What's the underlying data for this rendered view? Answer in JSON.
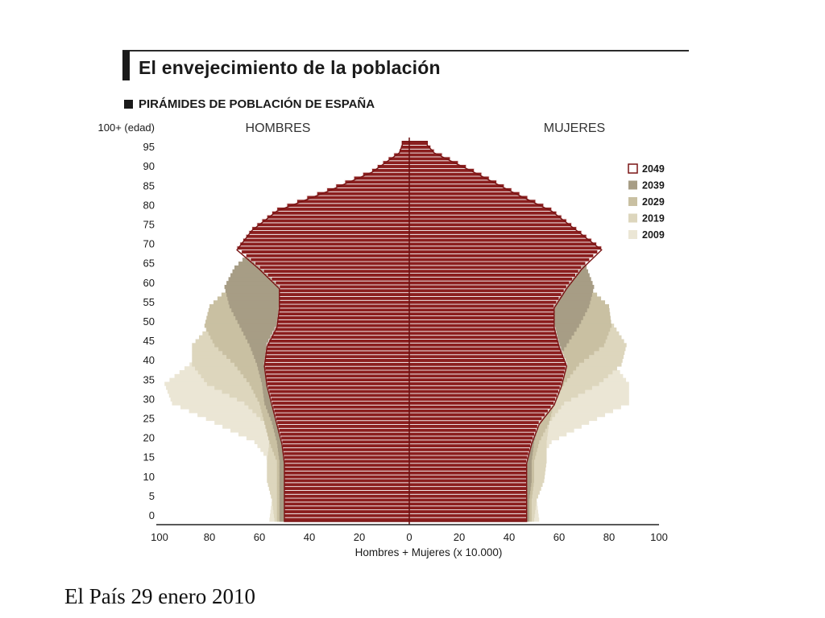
{
  "header": {
    "title": "El envejecimiento de la población",
    "subtitle": "PIRÁMIDES DE POBLACIÓN DE ESPAÑA"
  },
  "footer": {
    "source": "El País 29 enero 2010"
  },
  "colors": {
    "y2049_fill": "#8b1e1e",
    "y2049_line": "#f2e8e8",
    "y2039": "#a79d85",
    "y2029": "#c9c0a2",
    "y2019": "#ddd6bd",
    "y2009": "#ebe6d5",
    "axis": "#222222",
    "text": "#1a1a1a"
  },
  "chart_data": {
    "type": "bar",
    "subtype": "population-pyramid",
    "left_label": "HOMBRES",
    "right_label": "MUJERES",
    "y_top_label": "100+ (edad)",
    "xlabel": "Hombres + Mujeres (x 10.000)",
    "xlim": [
      -100,
      100
    ],
    "x_ticks": [
      -100,
      -80,
      -60,
      -40,
      -20,
      0,
      20,
      40,
      60,
      80,
      100
    ],
    "x_tick_labels": [
      "100",
      "80",
      "60",
      "40",
      "20",
      "0",
      "20",
      "40",
      "60",
      "80",
      "100"
    ],
    "y_ticks": [
      0,
      5,
      10,
      15,
      20,
      25,
      30,
      35,
      40,
      45,
      50,
      55,
      60,
      65,
      70,
      75,
      80,
      85,
      90,
      95,
      100
    ],
    "y_tick_labels": [
      "0",
      "5",
      "10",
      "15",
      "20",
      "25",
      "30",
      "35",
      "40",
      "45",
      "50",
      "55",
      "60",
      "65",
      "70",
      "75",
      "80",
      "85",
      "90",
      "95",
      "100+ (edad)"
    ],
    "legend_position": "right",
    "legend": [
      {
        "label": "2049",
        "style": "outline"
      },
      {
        "label": "2039",
        "style": "fill"
      },
      {
        "label": "2029",
        "style": "fill"
      },
      {
        "label": "2019",
        "style": "fill"
      },
      {
        "label": "2009",
        "style": "fill"
      }
    ],
    "ages": [
      0,
      5,
      10,
      15,
      20,
      25,
      30,
      35,
      40,
      45,
      50,
      55,
      60,
      65,
      70,
      75,
      80,
      85,
      90,
      95,
      100
    ],
    "series": [
      {
        "name": "2009",
        "men": [
          56,
          55,
          53,
          56,
          62,
          78,
          95,
          98,
          88,
          80,
          72,
          62,
          55,
          47,
          38,
          30,
          22,
          14,
          7,
          3,
          1
        ],
        "women": [
          52,
          51,
          50,
          52,
          57,
          72,
          88,
          88,
          82,
          76,
          70,
          62,
          56,
          50,
          44,
          38,
          31,
          22,
          13,
          6,
          2
        ]
      },
      {
        "name": "2019",
        "men": [
          54,
          55,
          57,
          57,
          56,
          58,
          66,
          81,
          87,
          87,
          80,
          72,
          62,
          54,
          44,
          35,
          25,
          16,
          8,
          3,
          1
        ],
        "women": [
          50,
          51,
          54,
          55,
          55,
          56,
          62,
          76,
          85,
          87,
          82,
          72,
          63,
          56,
          49,
          42,
          33,
          23,
          14,
          6,
          2
        ]
      },
      {
        "name": "2029",
        "men": [
          53,
          53,
          53,
          53,
          56,
          58,
          60,
          64,
          70,
          78,
          82,
          80,
          72,
          62,
          51,
          40,
          29,
          18,
          9,
          3,
          1
        ],
        "women": [
          49,
          49,
          50,
          50,
          52,
          56,
          58,
          62,
          68,
          78,
          81,
          80,
          72,
          63,
          56,
          47,
          37,
          26,
          15,
          7,
          2
        ]
      },
      {
        "name": "2039",
        "men": [
          52,
          52,
          52,
          52,
          53,
          55,
          58,
          59,
          61,
          64,
          68,
          72,
          74,
          70,
          62,
          51,
          38,
          24,
          11,
          4,
          1
        ],
        "women": [
          48,
          48,
          49,
          49,
          50,
          52,
          55,
          57,
          58,
          63,
          68,
          72,
          74,
          71,
          65,
          55,
          44,
          31,
          18,
          8,
          2
        ]
      },
      {
        "name": "2049",
        "men": [
          50,
          50,
          50,
          50,
          51,
          53,
          55,
          57,
          58,
          57,
          53,
          52,
          52,
          60,
          69,
          63,
          53,
          33,
          15,
          4,
          1
        ],
        "women": [
          47,
          47,
          47,
          47,
          49,
          52,
          58,
          61,
          63,
          60,
          58,
          58,
          63,
          69,
          77,
          67,
          57,
          41,
          26,
          10,
          3
        ]
      }
    ]
  }
}
